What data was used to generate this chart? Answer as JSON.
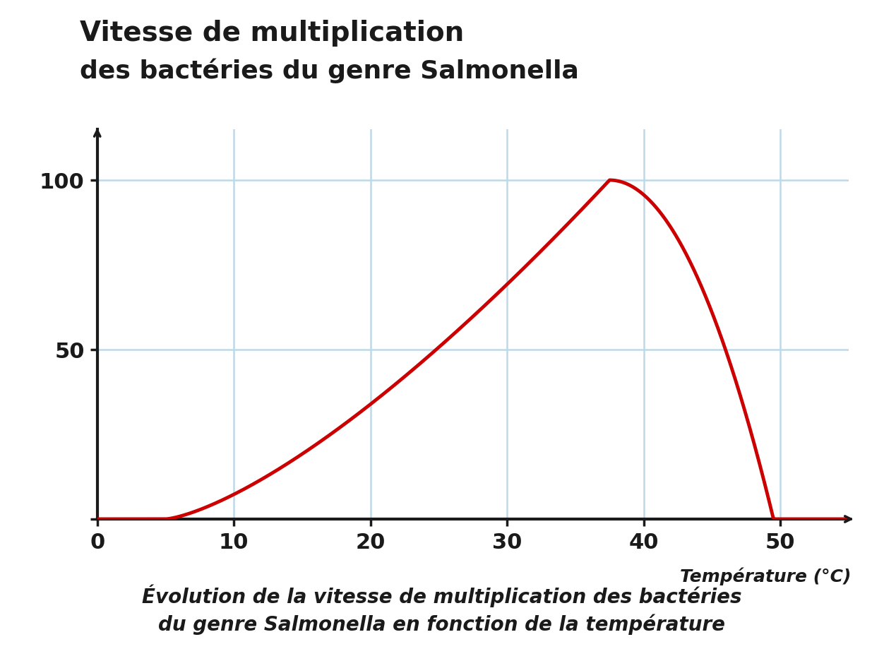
{
  "title_line1": "Vitesse de multiplication",
  "title_line2": "des bactéries du genre Salmonella",
  "xlabel": "Température (°C)",
  "ylabel": "",
  "caption_line1": "Évolution de la vitesse de multiplication des bactéries",
  "caption_line2": "du genre Salmonella en fonction de la température",
  "x_ticks": [
    0,
    10,
    20,
    30,
    40,
    50
  ],
  "y_ticks": [
    0,
    50,
    100
  ],
  "xlim": [
    0,
    55
  ],
  "ylim": [
    0,
    115
  ],
  "curve_color": "#cc0000",
  "grid_color": "#bdd9e8",
  "axis_color": "#1a1a1a",
  "background_color": "#ffffff",
  "peak_temp": 37.5,
  "peak_value": 100,
  "min_temp": 5.0,
  "max_temp": 49.5,
  "title_fontsize": 28,
  "caption_fontsize": 20,
  "tick_fontsize": 22,
  "axis_label_fontsize": 18,
  "line_width": 3.5,
  "rise_exponent": 1.4,
  "fall_exponent": 2.0
}
